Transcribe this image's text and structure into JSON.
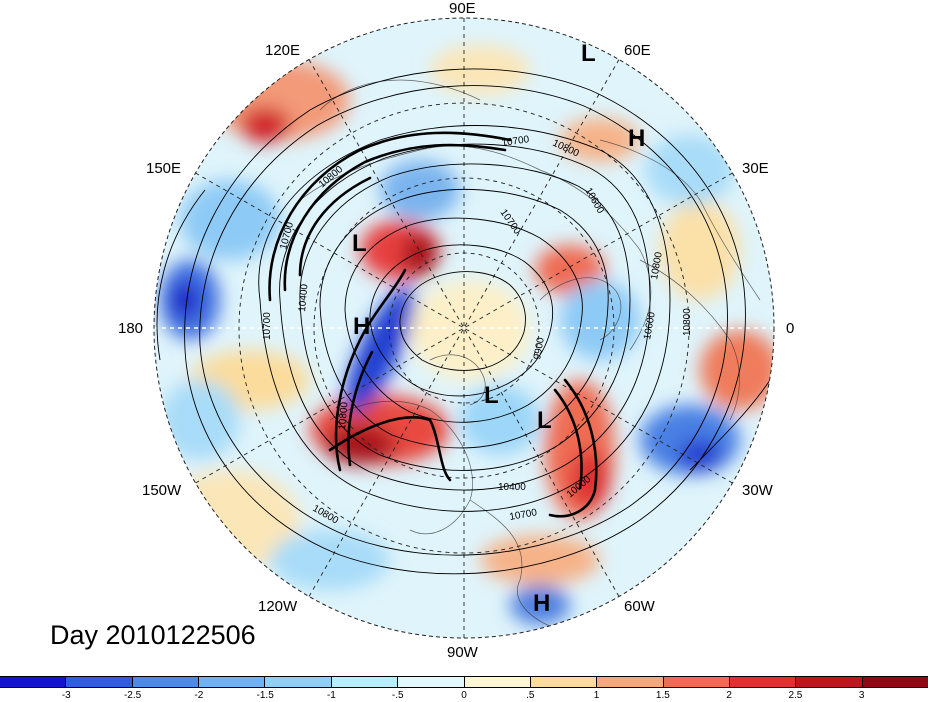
{
  "title": "Day 2010122506",
  "longitude_labels": {
    "top": "90E",
    "upper_left": "120E",
    "upper_right": "60E",
    "left_upper": "150E",
    "right_upper": "30E",
    "left": "180",
    "right": "0",
    "left_lower": "150W",
    "right_lower": "30W",
    "lower_left": "120W",
    "lower_right": "60W",
    "bottom": "90W"
  },
  "pressure_centers": [
    {
      "label": "L"
    },
    {
      "label": "H"
    },
    {
      "label": "L"
    },
    {
      "label": "H"
    },
    {
      "label": "L"
    },
    {
      "label": "L"
    },
    {
      "label": "H"
    }
  ],
  "contour_labels": [
    "10700",
    "10800",
    "10800",
    "10600",
    "10700",
    "10700",
    "10400",
    "10700",
    "10600",
    "10800",
    "10800",
    "9900",
    "10800",
    "10400",
    "10700",
    "10800",
    "10000"
  ],
  "colorbar": {
    "ticks": [
      "-3",
      "-2.5",
      "-2",
      "-1.5",
      "-1",
      "-.5",
      "0",
      ".5",
      "1",
      "1.5",
      "2",
      "2.5",
      "3"
    ],
    "colors": [
      "#1515c8",
      "#2f5fd8",
      "#4a8ae8",
      "#6cb2f4",
      "#8ed0fa",
      "#b8eefc",
      "#e2f8fc",
      "#fdf6d2",
      "#fbdc9c",
      "#f6a878",
      "#ef6c52",
      "#de3232",
      "#b8181e",
      "#8c0a16"
    ]
  }
}
